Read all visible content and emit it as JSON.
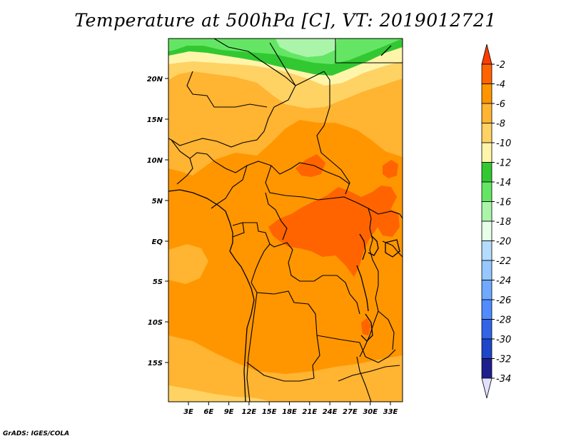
{
  "title": "Temperature at 500hPa [C], VT: 2019012721",
  "lat_labels": [
    "20N",
    "15N",
    "10N",
    "5N",
    "EQ",
    "5S",
    "10S",
    "15S"
  ],
  "lon_labels": [
    "3E",
    "6E",
    "9E",
    "12E",
    "15E",
    "18E",
    "21E",
    "24E",
    "27E",
    "30E",
    "33E"
  ],
  "colorbar": {
    "labels": [
      "-2",
      "-4",
      "-6",
      "-8",
      "-10",
      "-12",
      "-14",
      "-16",
      "-18",
      "-20",
      "-22",
      "-24",
      "-26",
      "-28",
      "-30",
      "-32",
      "-34"
    ],
    "colors": [
      "#ff3c00",
      "#ff6400",
      "#ff9600",
      "#ffb432",
      "#ffd264",
      "#fff5aa",
      "#32c832",
      "#64e664",
      "#aaf5aa",
      "#e6ffe6",
      "#b4dcff",
      "#96c8ff",
      "#6eaaff",
      "#508cff",
      "#3264e6",
      "#1e46c8",
      "#1e1e8c",
      "#e1e1ff"
    ]
  },
  "credit": "GrADS: IGES/COLA"
}
